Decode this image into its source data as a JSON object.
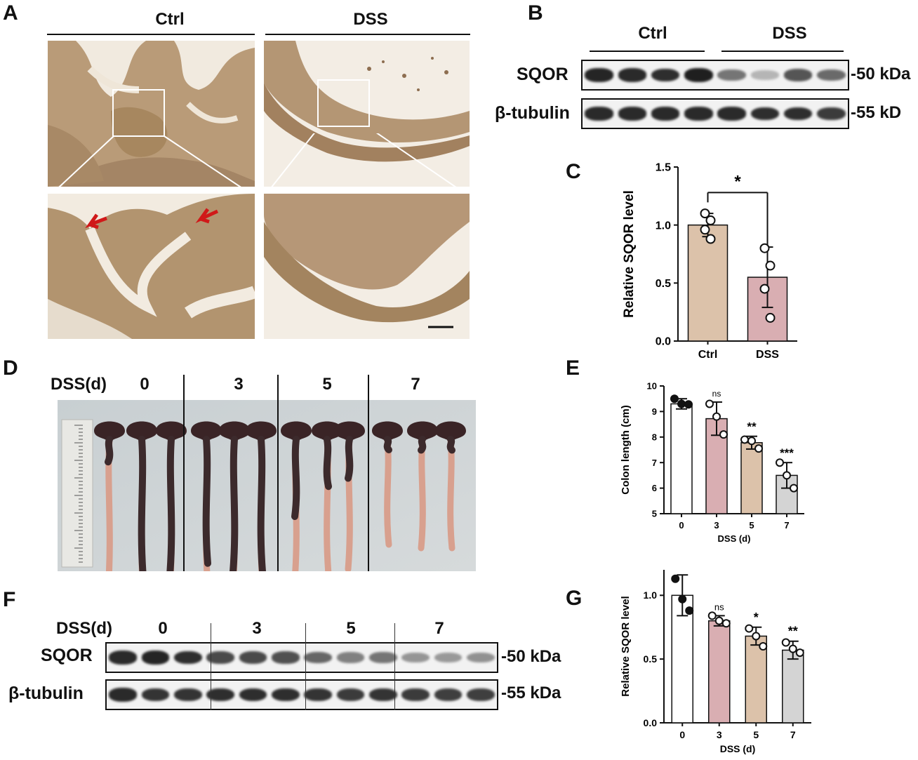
{
  "panels": {
    "A": {
      "letter": "A",
      "groups": [
        "Ctrl",
        "DSS"
      ]
    },
    "B": {
      "letter": "B",
      "groups": [
        "Ctrl",
        "DSS"
      ],
      "rows": [
        {
          "label": "SQOR",
          "marker": "-50 kDa",
          "intensity": [
            0.92,
            0.9,
            0.88,
            0.95,
            0.55,
            0.25,
            0.7,
            0.6
          ]
        },
        {
          "label": "β-tubulin",
          "marker": "-55 kD",
          "intensity": [
            0.9,
            0.9,
            0.9,
            0.9,
            0.9,
            0.88,
            0.88,
            0.82
          ]
        }
      ]
    },
    "C": {
      "letter": "C",
      "significance": "*"
    },
    "D": {
      "letter": "D",
      "axis_label": "DSS(d)",
      "days": [
        "0",
        "3",
        "5",
        "7"
      ]
    },
    "E": {
      "letter": "E",
      "significance": [
        "",
        "ns",
        "**",
        "***"
      ]
    },
    "F": {
      "letter": "F",
      "axis_label": "DSS(d)",
      "days": [
        "0",
        "3",
        "5",
        "7"
      ],
      "rows": [
        {
          "label": "SQOR",
          "marker": "-50 kDa",
          "intensity": [
            0.9,
            0.92,
            0.88,
            0.75,
            0.75,
            0.72,
            0.62,
            0.5,
            0.55,
            0.4,
            0.38,
            0.42
          ]
        },
        {
          "label": "β-tubulin",
          "marker": "-55 kDa",
          "intensity": [
            0.9,
            0.85,
            0.85,
            0.88,
            0.88,
            0.88,
            0.85,
            0.82,
            0.85,
            0.82,
            0.8,
            0.8
          ]
        }
      ]
    },
    "G": {
      "letter": "G",
      "significance": [
        "",
        "ns",
        "*",
        "**"
      ]
    }
  },
  "chart_data": [
    {
      "panel": "C",
      "type": "bar",
      "categories": [
        "Ctrl",
        "DSS"
      ],
      "values": [
        1.0,
        0.55
      ],
      "errors": [
        0.1,
        0.26
      ],
      "points": [
        [
          1.1,
          1.04,
          0.96,
          0.88
        ],
        [
          0.8,
          0.65,
          0.45,
          0.2
        ]
      ],
      "colors": [
        "#dcc2aa",
        "#d9aeb2"
      ],
      "ylabel": "Relative SQOR level",
      "ylim": [
        0,
        1.5
      ],
      "yticks": [
        "0.0",
        "0.5",
        "1.0",
        "1.5"
      ]
    },
    {
      "panel": "E",
      "type": "bar",
      "categories": [
        "0",
        "3",
        "5",
        "7"
      ],
      "values": [
        9.3,
        8.72,
        7.78,
        6.5
      ],
      "errors": [
        0.2,
        0.65,
        0.25,
        0.5
      ],
      "points": [
        [
          9.5,
          9.3,
          9.28
        ],
        [
          9.3,
          8.8,
          8.1
        ],
        [
          7.9,
          7.85,
          7.55
        ],
        [
          7.0,
          6.5,
          6.0
        ]
      ],
      "filled": [
        true,
        false,
        false,
        false
      ],
      "colors": [
        "#ffffff",
        "#d9aeb2",
        "#dcc2aa",
        "#d4d4d4"
      ],
      "xlabel": "DSS (d)",
      "ylabel": "Colon length (cm)",
      "ylim": [
        5,
        10
      ],
      "yticks": [
        "5",
        "6",
        "7",
        "8",
        "9",
        "10"
      ]
    },
    {
      "panel": "G",
      "type": "bar",
      "categories": [
        "0",
        "3",
        "5",
        "7"
      ],
      "values": [
        1.0,
        0.8,
        0.68,
        0.57
      ],
      "errors": [
        0.16,
        0.04,
        0.07,
        0.07
      ],
      "points": [
        [
          1.13,
          0.97,
          0.88
        ],
        [
          0.84,
          0.8,
          0.78
        ],
        [
          0.74,
          0.68,
          0.6
        ],
        [
          0.63,
          0.58,
          0.55
        ]
      ],
      "filled": [
        true,
        false,
        false,
        false
      ],
      "colors": [
        "#ffffff",
        "#d9aeb2",
        "#dcc2aa",
        "#d4d4d4"
      ],
      "xlabel": "DSS (d)",
      "ylabel": "Relative SQOR level",
      "ylim": [
        0,
        1.2
      ],
      "yticks": [
        "0.0",
        "0.5",
        "1.0"
      ]
    }
  ]
}
